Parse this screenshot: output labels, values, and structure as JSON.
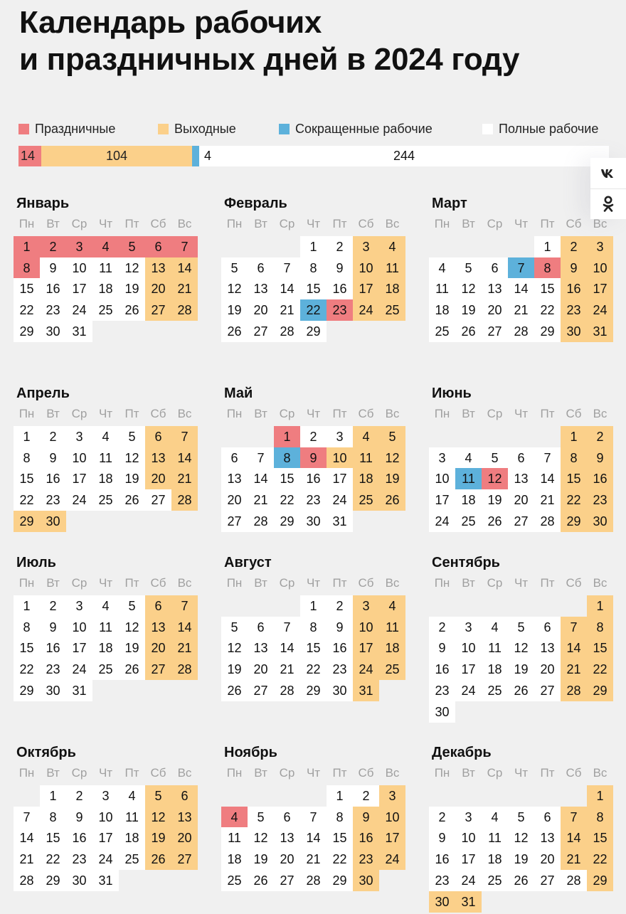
{
  "title": {
    "line1": "Календарь рабочих",
    "line2": "и праздничных дней в 2024 году"
  },
  "legend": [
    {
      "label": "Праздничные",
      "color": "#ef7d80"
    },
    {
      "label": "Выходные",
      "color": "#fbd08a"
    },
    {
      "label": "Сокращенные рабочие",
      "color": "#5db1db"
    },
    {
      "label": "Полные рабочие",
      "color": "#ffffff"
    }
  ],
  "summary": [
    {
      "type": "holiday",
      "count": 14
    },
    {
      "type": "weekend",
      "count": 104
    },
    {
      "type": "short",
      "count": 4
    },
    {
      "type": "full",
      "count": 244
    }
  ],
  "share": {
    "vk_icon": "vk-icon",
    "ok_icon": "ok-icon",
    "vk_label": "vk",
    "ok_label": "ok"
  },
  "weekdays": [
    "Пн",
    "Вт",
    "Ср",
    "Чт",
    "Пт",
    "Сб",
    "Вс"
  ],
  "months": [
    {
      "name": "Январь",
      "start_weekday": 1,
      "days": 31,
      "holidays": [
        1,
        2,
        3,
        4,
        5,
        6,
        7,
        8
      ],
      "short": [],
      "workday_weekends": []
    },
    {
      "name": "Февраль",
      "start_weekday": 4,
      "days": 29,
      "holidays": [
        23
      ],
      "short": [
        22
      ],
      "workday_weekends": []
    },
    {
      "name": "Март",
      "start_weekday": 5,
      "days": 31,
      "holidays": [
        8
      ],
      "short": [
        7
      ],
      "workday_weekends": []
    },
    {
      "name": "Апрель",
      "start_weekday": 1,
      "days": 30,
      "holidays": [],
      "short": [],
      "workday_weekends": [
        27
      ],
      "extra_weekends": [
        29,
        30
      ]
    },
    {
      "name": "Май",
      "start_weekday": 3,
      "days": 31,
      "holidays": [
        1,
        9
      ],
      "short": [
        8
      ],
      "workday_weekends": [],
      "extra_weekends": [
        10
      ]
    },
    {
      "name": "Июнь",
      "start_weekday": 6,
      "days": 30,
      "holidays": [
        12
      ],
      "short": [
        11
      ],
      "workday_weekends": []
    },
    {
      "name": "Июль",
      "start_weekday": 1,
      "days": 31,
      "holidays": [],
      "short": [],
      "workday_weekends": []
    },
    {
      "name": "Август",
      "start_weekday": 4,
      "days": 31,
      "holidays": [],
      "short": [],
      "workday_weekends": []
    },
    {
      "name": "Сентябрь",
      "start_weekday": 7,
      "days": 30,
      "holidays": [],
      "short": [],
      "workday_weekends": []
    },
    {
      "name": "Октябрь",
      "start_weekday": 2,
      "days": 31,
      "holidays": [],
      "short": [],
      "workday_weekends": []
    },
    {
      "name": "Ноябрь",
      "start_weekday": 5,
      "days": 30,
      "holidays": [
        4
      ],
      "short": [],
      "workday_weekends": [
        2
      ]
    },
    {
      "name": "Декабрь",
      "start_weekday": 7,
      "days": 31,
      "holidays": [],
      "short": [],
      "workday_weekends": [
        28
      ],
      "extra_weekends": [
        30,
        31
      ]
    }
  ]
}
